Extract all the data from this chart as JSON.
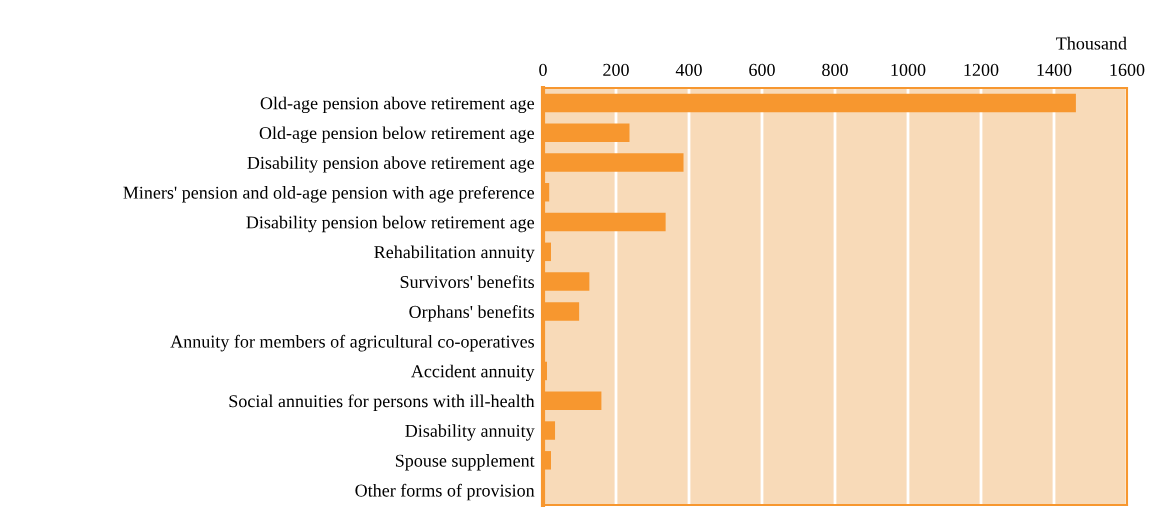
{
  "chart_data": {
    "type": "bar",
    "orientation": "horizontal",
    "xlabel": "Thousand",
    "categories": [
      "Old-age pension above retirement age",
      "Old-age pension below retirement age",
      "Disability pension above retirement age",
      "Miners' pension and old-age pension with age preference",
      "Disability pension below retirement age",
      "Rehabilitation annuity",
      "Survivors' benefits",
      "Orphans' benefits",
      "Annuity for members of agricultural co-operatives",
      "Accident annuity",
      "Social annuities for persons with ill-health",
      "Disability annuity",
      "Spouse supplement",
      "Other forms of provision"
    ],
    "values": [
      1460,
      237,
      385,
      17,
      336,
      22,
      127,
      99,
      1,
      11,
      160,
      33,
      22,
      1
    ],
    "color": "#f7972f",
    "xlim": [
      0,
      1600
    ],
    "xticks": [
      0,
      200,
      400,
      600,
      800,
      1000,
      1200,
      1400,
      1600
    ],
    "grid": "x"
  }
}
